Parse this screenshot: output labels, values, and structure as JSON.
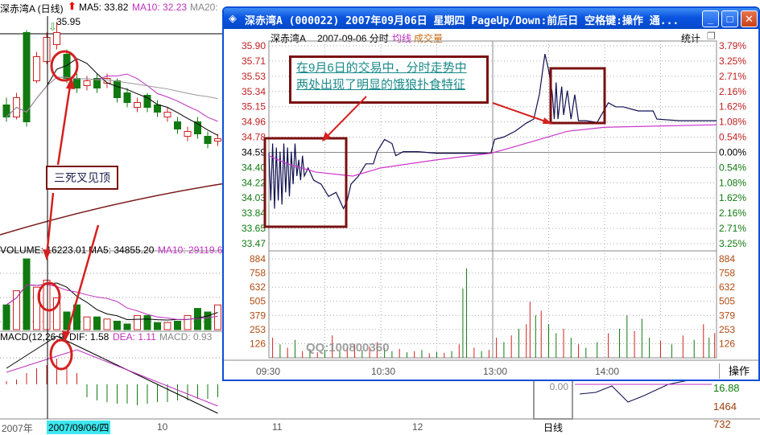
{
  "daily": {
    "title": "深赤湾A (日线)",
    "ma5": "MA5: 33.82",
    "ma10": "MA10: 32.23",
    "ma20": "MA20:",
    "high_label": "35.95",
    "volume_label": "VOLUME: 16223.01",
    "vol_ma5": "MA5: 34855.20",
    "vol_ma10": "MA10: 29119.6",
    "macd_label": "MACD(12,26,9)",
    "dif": "DIF: 1.58",
    "dea": "DEA: 1.11",
    "macd": "MACD: 0.93",
    "dates": [
      "2007年",
      "2007/09/06/四",
      "10",
      "11",
      "12"
    ],
    "annotation": "三死叉见顶",
    "bottom_value": "0.00",
    "period_label": "日线",
    "right_labels": [
      "16.88",
      "1464",
      "732"
    ],
    "candles": [
      [
        32.5,
        32.0,
        32.8,
        31.8
      ],
      [
        32.0,
        32.8,
        33.0,
        31.9
      ],
      [
        35.5,
        31.8,
        35.6,
        31.6
      ],
      [
        33.5,
        34.5,
        34.7,
        33.4
      ],
      [
        34.3,
        35.3,
        35.5,
        34.2
      ],
      [
        35.0,
        35.5,
        35.95,
        34.8
      ],
      [
        34.6,
        33.6,
        34.8,
        33.4
      ],
      [
        33.6,
        33.2,
        33.8,
        33.0
      ],
      [
        33.3,
        33.5,
        33.7,
        33.1
      ],
      [
        33.6,
        33.2,
        33.8,
        33.0
      ],
      [
        33.4,
        33.6,
        33.8,
        33.2
      ],
      [
        33.5,
        32.8,
        33.6,
        32.6
      ],
      [
        33.0,
        32.6,
        33.2,
        32.4
      ],
      [
        32.4,
        32.6,
        32.8,
        32.2
      ],
      [
        32.9,
        32.4,
        33.0,
        32.2
      ],
      [
        32.5,
        32.2,
        32.7,
        32.0
      ],
      [
        32.0,
        32.2,
        32.4,
        31.8
      ],
      [
        31.8,
        31.5,
        32.0,
        31.3
      ],
      [
        31.2,
        31.4,
        31.6,
        31.0
      ],
      [
        31.8,
        31.3,
        32.0,
        31.1
      ],
      [
        31.2,
        30.9,
        31.4,
        30.7
      ],
      [
        31.0,
        31.1,
        31.3,
        30.8
      ]
    ],
    "volumes": [
      0.35,
      0.55,
      1.0,
      0.6,
      0.7,
      0.45,
      0.25,
      0.35,
      0.18,
      0.18,
      0.15,
      0.12,
      0.08,
      0.2,
      0.2,
      0.1,
      0.1,
      0.12,
      0.2,
      0.3,
      0.25,
      0.35
    ],
    "macd_hist": [
      0.1,
      0.15,
      0.35,
      0.5,
      0.6,
      0.8,
      0.5,
      0.35,
      -0.4,
      -0.5,
      -0.55,
      -0.6,
      -0.6,
      -0.65,
      -0.6,
      -0.55,
      -0.55,
      -0.5,
      -0.5,
      -0.45,
      -0.45,
      -0.4
    ]
  },
  "window": {
    "title": "深赤湾A (000022) 2007年09月06日 星期四 PageUp/Down:前后日 空格键:操作 通...",
    "stock": "深赤湾A",
    "date_mode": "2007-09-06 分时",
    "avg_label": "均线",
    "vol_label": "成交量",
    "stats_label": "统计",
    "op_button": "操作",
    "note": [
      "在9月6日的交易中，分时走势中",
      "两处出现了明显的饿狼扑食特征"
    ],
    "watermark": "QQ:100800360"
  },
  "chart_data": {
    "type": "line",
    "prev_close": 34.59,
    "ylim": [
      33.47,
      35.9
    ],
    "price_ticks": [
      "35.90",
      "35.71",
      "35.53",
      "35.34",
      "35.15",
      "34.96",
      "34.78",
      "34.59",
      "34.40",
      "34.22",
      "34.03",
      "33.84",
      "33.65",
      "33.47"
    ],
    "pct_ticks": [
      "3.79%",
      "3.25%",
      "2.71%",
      "2.16%",
      "1.62%",
      "1.08%",
      "0.54%",
      "0.00%",
      "0.54%",
      "1.08%",
      "1.62%",
      "2.16%",
      "2.71%",
      "3.25%"
    ],
    "vol_ticks": [
      "884",
      "758",
      "632",
      "505",
      "379",
      "253",
      "126"
    ],
    "x_ticks": [
      "09:30",
      "10:30",
      "13:00",
      "14:00"
    ],
    "series": [
      {
        "name": "分时",
        "color": "#101050",
        "points": [
          [
            0,
            34.59
          ],
          [
            1,
            34.0
          ],
          [
            2,
            34.7
          ],
          [
            3,
            33.9
          ],
          [
            4,
            34.65
          ],
          [
            5,
            34.0
          ],
          [
            6,
            34.6
          ],
          [
            7,
            33.95
          ],
          [
            8,
            34.7
          ],
          [
            9,
            34.1
          ],
          [
            10,
            34.65
          ],
          [
            11,
            34.05
          ],
          [
            12,
            34.6
          ],
          [
            13,
            34.2
          ],
          [
            14,
            34.7
          ],
          [
            15,
            34.3
          ],
          [
            16,
            34.5
          ],
          [
            17,
            34.25
          ],
          [
            18,
            34.55
          ],
          [
            19,
            34.3
          ],
          [
            21,
            34.4
          ],
          [
            24,
            34.25
          ],
          [
            28,
            34.2
          ],
          [
            32,
            34.05
          ],
          [
            36,
            34.1
          ],
          [
            40,
            33.9
          ],
          [
            42,
            34.0
          ],
          [
            44,
            34.2
          ],
          [
            48,
            34.3
          ],
          [
            52,
            34.45
          ],
          [
            56,
            34.45
          ],
          [
            58,
            34.6
          ],
          [
            62,
            34.75
          ],
          [
            66,
            34.7
          ],
          [
            68,
            34.55
          ],
          [
            72,
            34.6
          ],
          [
            80,
            34.6
          ],
          [
            90,
            34.58
          ],
          [
            100,
            34.58
          ],
          [
            110,
            34.58
          ],
          [
            119,
            34.58
          ],
          [
            121,
            34.75
          ],
          [
            126,
            34.78
          ],
          [
            132,
            34.85
          ],
          [
            138,
            34.95
          ],
          [
            142,
            35.0
          ],
          [
            145,
            35.3
          ],
          [
            148,
            35.8
          ],
          [
            150,
            35.6
          ],
          [
            152,
            35.3
          ],
          [
            153,
            35.0
          ],
          [
            154,
            35.45
          ],
          [
            155,
            35.0
          ],
          [
            157,
            35.4
          ],
          [
            158,
            35.05
          ],
          [
            160,
            35.35
          ],
          [
            162,
            35.0
          ],
          [
            164,
            35.3
          ],
          [
            166,
            34.98
          ],
          [
            170,
            34.98
          ],
          [
            176,
            34.96
          ],
          [
            182,
            35.2
          ],
          [
            186,
            35.15
          ],
          [
            190,
            35.15
          ],
          [
            198,
            35.1
          ],
          [
            206,
            35.1
          ],
          [
            208,
            35.0
          ],
          [
            220,
            34.98
          ],
          [
            230,
            34.98
          ],
          [
            240,
            34.98
          ]
        ]
      },
      {
        "name": "均线",
        "color": "#cc33cc",
        "points": [
          [
            0,
            34.55
          ],
          [
            10,
            34.45
          ],
          [
            25,
            34.35
          ],
          [
            45,
            34.3
          ],
          [
            60,
            34.4
          ],
          [
            90,
            34.5
          ],
          [
            119,
            34.58
          ],
          [
            130,
            34.65
          ],
          [
            145,
            34.75
          ],
          [
            160,
            34.85
          ],
          [
            180,
            34.9
          ],
          [
            240,
            34.93
          ]
        ]
      }
    ],
    "volume": [
      [
        2,
        180,
        "r"
      ],
      [
        6,
        120,
        "g"
      ],
      [
        10,
        90,
        "r"
      ],
      [
        14,
        160,
        "g"
      ],
      [
        18,
        60,
        "r"
      ],
      [
        22,
        80,
        "g"
      ],
      [
        26,
        50,
        "r"
      ],
      [
        30,
        70,
        "g"
      ],
      [
        34,
        200,
        "r"
      ],
      [
        38,
        60,
        "g"
      ],
      [
        42,
        90,
        "r"
      ],
      [
        46,
        120,
        "r"
      ],
      [
        50,
        70,
        "g"
      ],
      [
        54,
        100,
        "r"
      ],
      [
        58,
        140,
        "r"
      ],
      [
        62,
        90,
        "g"
      ],
      [
        66,
        60,
        "g"
      ],
      [
        70,
        80,
        "r"
      ],
      [
        74,
        50,
        "g"
      ],
      [
        78,
        60,
        "r"
      ],
      [
        82,
        70,
        "g"
      ],
      [
        86,
        40,
        "r"
      ],
      [
        90,
        55,
        "g"
      ],
      [
        94,
        45,
        "r"
      ],
      [
        98,
        60,
        "g"
      ],
      [
        102,
        120,
        "r"
      ],
      [
        104,
        620,
        "g"
      ],
      [
        106,
        800,
        "g"
      ],
      [
        110,
        90,
        "r"
      ],
      [
        114,
        60,
        "g"
      ],
      [
        118,
        70,
        "r"
      ],
      [
        122,
        180,
        "r"
      ],
      [
        126,
        140,
        "g"
      ],
      [
        130,
        200,
        "r"
      ],
      [
        134,
        260,
        "g"
      ],
      [
        138,
        300,
        "r"
      ],
      [
        140,
        500,
        "r"
      ],
      [
        143,
        380,
        "g"
      ],
      [
        146,
        420,
        "r"
      ],
      [
        150,
        300,
        "g"
      ],
      [
        154,
        220,
        "g"
      ],
      [
        158,
        260,
        "r"
      ],
      [
        162,
        180,
        "g"
      ],
      [
        166,
        120,
        "r"
      ],
      [
        170,
        90,
        "g"
      ],
      [
        176,
        140,
        "g"
      ],
      [
        182,
        220,
        "r"
      ],
      [
        188,
        260,
        "g"
      ],
      [
        192,
        380,
        "g"
      ],
      [
        196,
        240,
        "r"
      ],
      [
        200,
        350,
        "g"
      ],
      [
        204,
        180,
        "g"
      ],
      [
        210,
        150,
        "r"
      ],
      [
        216,
        120,
        "g"
      ],
      [
        222,
        200,
        "r"
      ],
      [
        228,
        160,
        "g"
      ],
      [
        233,
        300,
        "r"
      ],
      [
        236,
        180,
        "g"
      ],
      [
        239,
        220,
        "r"
      ]
    ]
  },
  "colors": {
    "up": "#d02020",
    "down": "#107a10",
    "title_bar": "#0a54e0",
    "annotation": "#d42020",
    "note_border": "#7a1010"
  }
}
